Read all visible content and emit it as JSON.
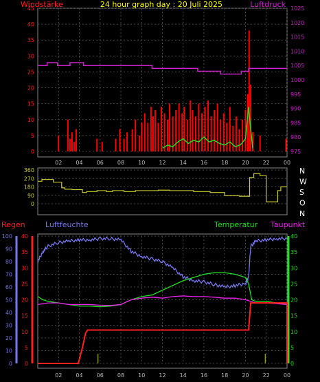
{
  "colors": {
    "wind": "#ff2020",
    "gust": "#ff0000",
    "pressure": "#cc22cc",
    "direction": "#cccc33",
    "rain": "#ff2020",
    "humidity": "#7777ee",
    "temperature": "#22dd22",
    "dewpoint": "#ee22ee",
    "title": "#ffff00",
    "grid": "#4a4a4a",
    "axis_x": "#bbbbbb"
  },
  "chart_data": [
    {
      "type": "bar",
      "title": "24 hour graph day : 20 Juli 2025",
      "left_label": "Windstärke",
      "right_label": "Luftdruck",
      "x_ticks": [
        "02",
        "04",
        "06",
        "08",
        "10",
        "12",
        "14",
        "16",
        "18",
        "20",
        "22",
        "00"
      ],
      "ylim_left": [
        0,
        45
      ],
      "yticks_left": [
        "0",
        "5",
        "10",
        "15",
        "20",
        "25",
        "30",
        "35",
        "40",
        "45"
      ],
      "ylim_right": [
        975,
        1025
      ],
      "yticks_right": [
        "975",
        "980",
        "985",
        "990",
        "995",
        "1000",
        "1005",
        "1010",
        "1015",
        "1020",
        "1025"
      ],
      "pressure_x": [
        0,
        0.9,
        0.9,
        1.9,
        1.9,
        3.1,
        3.1,
        4.4,
        4.4,
        6.6,
        6.6,
        11.0,
        11.0,
        15.4,
        15.4,
        17.6,
        17.6,
        19.6,
        19.6,
        20.3,
        20.3,
        24.0
      ],
      "pressure_y": [
        1005,
        1005,
        1006,
        1006,
        1005,
        1005,
        1006,
        1006,
        1005,
        1005,
        1005,
        1005,
        1004,
        1004,
        1003,
        1003,
        1002,
        1002,
        1003,
        1003,
        1004,
        1004
      ],
      "gust_x": [
        2.0,
        2.9,
        3.1,
        3.3,
        3.5,
        3.7,
        5.7,
        6.2,
        7.5,
        7.9,
        8.3,
        8.6,
        9.1,
        9.4,
        9.8,
        10.0,
        10.3,
        10.6,
        10.9,
        11.1,
        11.3,
        11.6,
        11.9,
        12.2,
        12.5,
        12.7,
        13.0,
        13.3,
        13.6,
        13.9,
        14.1,
        14.4,
        14.7,
        14.9,
        15.2,
        15.5,
        15.8,
        16.1,
        16.4,
        16.7,
        17.0,
        17.3,
        17.6,
        17.9,
        18.2,
        18.5,
        18.8,
        19.1,
        19.4,
        19.7,
        20.0,
        20.2,
        20.35,
        20.5,
        20.7,
        21.4,
        23.9
      ],
      "gust_y": [
        5,
        10,
        4,
        6,
        3,
        7,
        4,
        3,
        4,
        7,
        4,
        6,
        7,
        10,
        5,
        9,
        12,
        9,
        14,
        11,
        13,
        9,
        14,
        12,
        10,
        15,
        11,
        13,
        15,
        12,
        14,
        10,
        16,
        13,
        11,
        15,
        12,
        14,
        16,
        11,
        13,
        15,
        10,
        12,
        9,
        14,
        8,
        11,
        7,
        10,
        13,
        18,
        38,
        21,
        6,
        5,
        4
      ],
      "wind_x": [
        12.0,
        12.5,
        13.0,
        13.5,
        14.0,
        14.5,
        15.0,
        15.5,
        16.0,
        16.5,
        17.0,
        17.5,
        18.0,
        18.5,
        19.0,
        19.5,
        20.0,
        20.3,
        20.5,
        20.7
      ],
      "wind_y": [
        1.0,
        2.0,
        1.5,
        3.0,
        4.0,
        2.5,
        3.5,
        3.0,
        4.5,
        3.0,
        3.5,
        2.5,
        2.0,
        3.0,
        1.5,
        2.0,
        4.0,
        14.0,
        7.0,
        1.0
      ]
    },
    {
      "type": "line",
      "series_name": "Wind direction",
      "left_ticks": [
        "360",
        "270",
        "180",
        "90",
        "0"
      ],
      "right_labels": [
        "N",
        "W",
        "S",
        "O",
        "N"
      ],
      "ylim": [
        0,
        360
      ],
      "x": [
        0,
        0.4,
        0.4,
        1.5,
        1.5,
        2.3,
        2.3,
        2.6,
        2.6,
        3.3,
        3.3,
        4.3,
        4.3,
        4.7,
        4.7,
        5.7,
        5.7,
        6.6,
        6.6,
        7.2,
        7.2,
        8.3,
        8.3,
        9.4,
        9.4,
        11.6,
        11.6,
        12.7,
        12.7,
        15.0,
        15.0,
        16.6,
        16.6,
        18.0,
        18.0,
        19.4,
        19.4,
        20.4,
        20.4,
        20.8,
        20.8,
        21.4,
        21.4,
        22.0,
        22.0,
        23.1,
        23.1,
        23.4,
        23.4,
        24.0
      ],
      "y": [
        240,
        240,
        260,
        260,
        230,
        230,
        170,
        170,
        155,
        155,
        150,
        150,
        120,
        120,
        130,
        130,
        140,
        140,
        130,
        130,
        140,
        140,
        130,
        130,
        140,
        140,
        145,
        145,
        140,
        140,
        130,
        130,
        120,
        120,
        85,
        85,
        80,
        80,
        280,
        280,
        320,
        320,
        300,
        300,
        20,
        20,
        140,
        140,
        180,
        180
      ]
    },
    {
      "type": "line",
      "left_label": "Regen",
      "humidity_label": "Luftfeuchte",
      "temperature_label": "Temperatur",
      "dewpoint_label": "Taupunkt",
      "x_ticks": [
        "02",
        "04",
        "06",
        "08",
        "10",
        "12",
        "14",
        "16",
        "18",
        "20",
        "22",
        "00"
      ],
      "ylim_rain": [
        0,
        40
      ],
      "rain_ticks": [
        "0",
        "5",
        "10",
        "15",
        "20",
        "25",
        "30",
        "35",
        "40"
      ],
      "ylim_humidity": [
        0,
        100
      ],
      "humidity_ticks": [
        "0",
        "10",
        "20",
        "30",
        "40",
        "50",
        "60",
        "70",
        "80",
        "90",
        "100"
      ],
      "ylim_temp": [
        0,
        40
      ],
      "temp_ticks": [
        "0",
        "5",
        "10",
        "15",
        "20",
        "25",
        "30",
        "35",
        "40"
      ],
      "humidity_x": [
        0,
        0.5,
        1,
        2,
        3,
        4,
        5,
        6,
        7,
        8,
        9,
        10,
        11,
        12,
        13,
        14,
        15,
        16,
        17,
        18,
        19,
        20,
        20.3,
        20.5,
        21,
        22,
        23,
        24
      ],
      "humidity_y": [
        80,
        88,
        92,
        95,
        96,
        97,
        97,
        98,
        98,
        97,
        88,
        84,
        82,
        80,
        75,
        68,
        65,
        64,
        62,
        60,
        61,
        63,
        68,
        92,
        96,
        97,
        98,
        98
      ],
      "temperature_x": [
        0,
        0.5,
        1,
        2,
        3,
        4,
        5,
        6,
        7,
        8,
        9,
        10,
        11,
        12,
        13,
        14,
        15,
        16,
        17,
        18,
        19,
        20,
        20.3,
        20.6,
        21,
        22,
        23,
        24
      ],
      "temperature_y": [
        21,
        20,
        19.5,
        19,
        18.5,
        18,
        18,
        17.8,
        18,
        18.5,
        20,
        21,
        21.5,
        23,
        24.5,
        26,
        27,
        28,
        28.5,
        28.5,
        28,
        27,
        25,
        20,
        19.5,
        19.5,
        19,
        18.5
      ],
      "dewpoint_x": [
        0,
        1,
        2,
        3,
        4,
        5,
        6,
        7,
        8,
        9,
        10,
        11,
        12,
        13,
        14,
        15,
        16,
        17,
        18,
        19,
        20,
        21,
        22,
        23,
        24
      ],
      "dewpoint_y": [
        18.5,
        19,
        19,
        18.5,
        18.5,
        18.5,
        18.3,
        18.2,
        18.5,
        20,
        20.5,
        20.8,
        20.5,
        21,
        21.2,
        21,
        21,
        20.8,
        20.5,
        20.5,
        20,
        19,
        19,
        18.8,
        18.5
      ],
      "rain_x": [
        0,
        3.9,
        4.3,
        4.6,
        4.8,
        20.3,
        20.5,
        24.0,
        24.0
      ],
      "rain_y": [
        0,
        0,
        5,
        9.5,
        10.5,
        10.5,
        19,
        19,
        0
      ],
      "rain_event_x": [
        5.8,
        21.9
      ],
      "rain_event_y": [
        3,
        3
      ]
    }
  ]
}
